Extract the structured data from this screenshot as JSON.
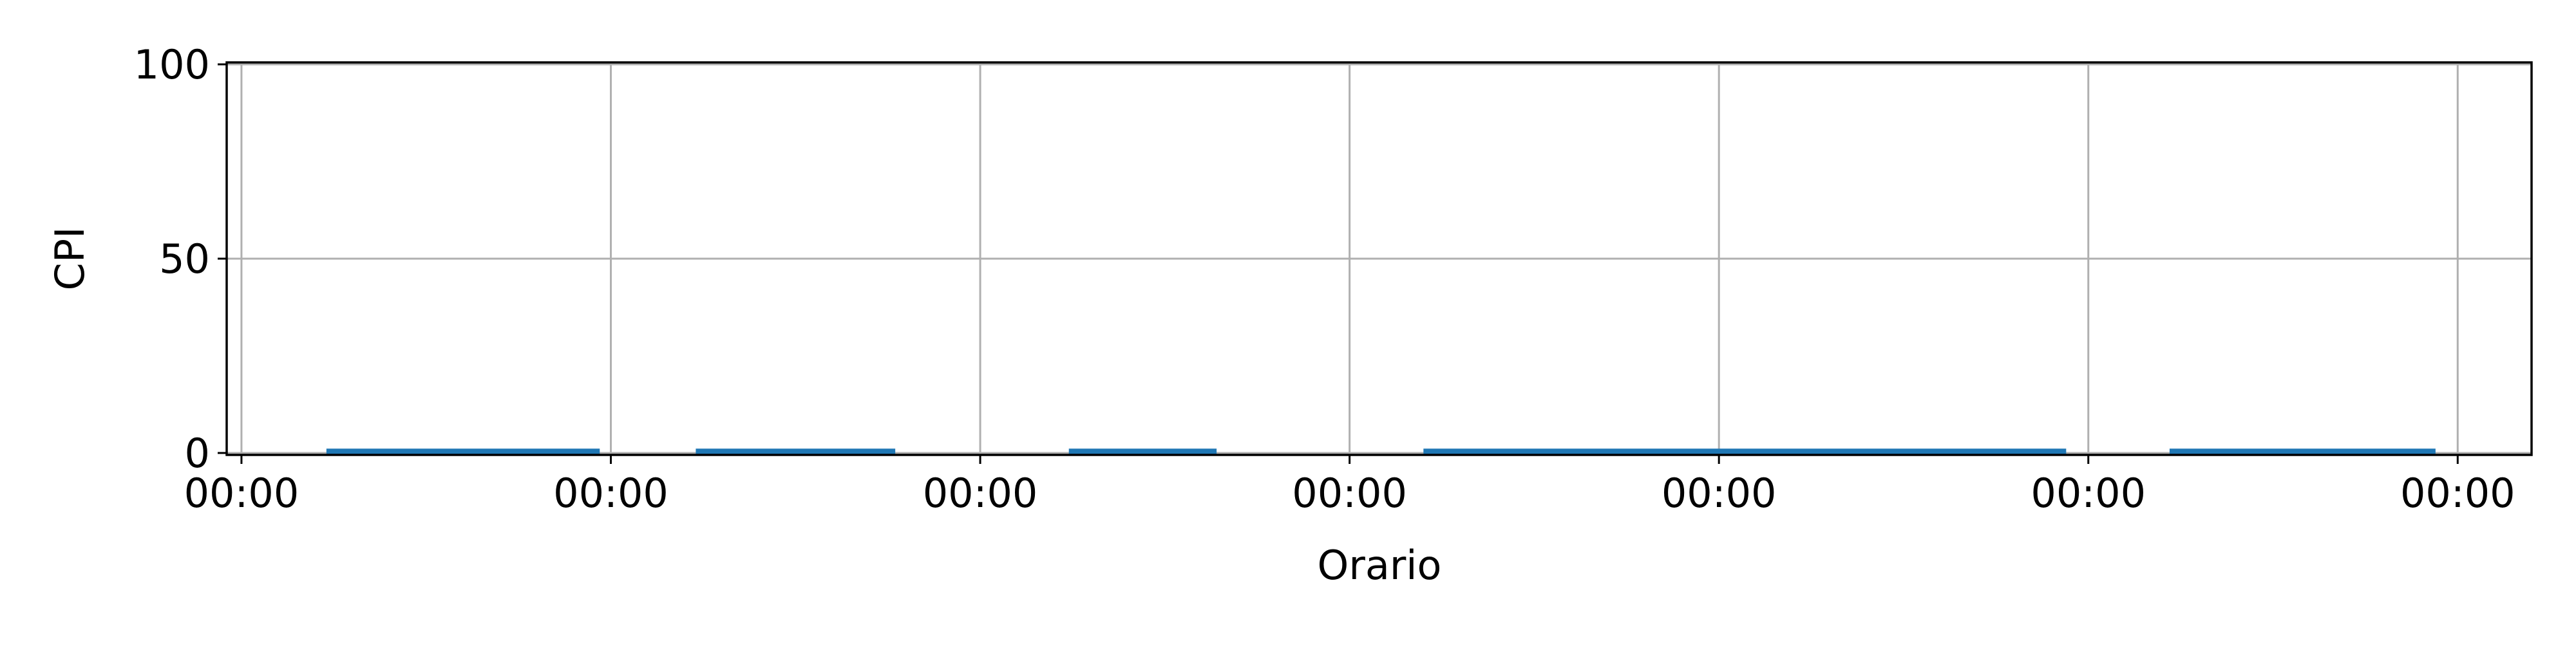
{
  "chart_data": {
    "type": "line",
    "title": "",
    "xlabel": "Orario",
    "ylabel": "CPI",
    "ylim": [
      0,
      100
    ],
    "yticks": [
      0,
      50,
      100
    ],
    "x_tick_labels": [
      "00:00",
      "00:00",
      "00:00",
      "00:00",
      "00:00",
      "00:00",
      "00:00"
    ],
    "xlim": [
      -0.04,
      6.2
    ],
    "grid": true,
    "series": [
      {
        "color": "#1f77b4",
        "segments": [
          {
            "x": [
              0.23,
              0.97
            ],
            "y": [
              0.3,
              0.3
            ]
          },
          {
            "x": [
              1.23,
              1.77
            ],
            "y": [
              0.3,
              0.3
            ]
          },
          {
            "x": [
              2.24,
              2.64
            ],
            "y": [
              0.3,
              0.3
            ]
          },
          {
            "x": [
              3.2,
              4.94
            ],
            "y": [
              0.3,
              0.3
            ]
          },
          {
            "x": [
              5.22,
              5.94
            ],
            "y": [
              0.3,
              0.3
            ]
          }
        ]
      }
    ]
  }
}
